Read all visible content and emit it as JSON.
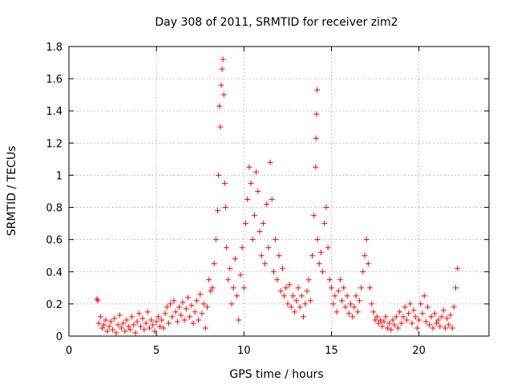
{
  "chart_data": {
    "type": "scatter",
    "title": "Day 308 of 2011, SRMTID for receiver zim2",
    "xlabel": "GPS time / hours",
    "ylabel": "SRMTID / TECUs",
    "xlim": [
      0,
      24
    ],
    "ylim": [
      0,
      1.8
    ],
    "x_ticks": [
      0,
      5,
      10,
      15,
      20
    ],
    "y_ticks": [
      0,
      0.2,
      0.4,
      0.6,
      0.8,
      1,
      1.2,
      1.4,
      1.6,
      1.8
    ],
    "x_tick_labels": [
      "0",
      "5",
      "10",
      "15",
      "20"
    ],
    "y_tick_labels": [
      "0",
      "0.2",
      "0.4",
      "0.6",
      "0.8",
      "1",
      "1.2",
      "1.4",
      "1.6",
      "1.8"
    ],
    "grid": true,
    "marker": "+",
    "color": "#ff0000",
    "series": [
      {
        "name": "zim2",
        "points": [
          [
            1.6,
            0.23
          ],
          [
            1.65,
            0.22
          ],
          [
            1.7,
            0.08
          ],
          [
            1.8,
            0.12
          ],
          [
            1.9,
            0.05
          ],
          [
            2.0,
            0.07
          ],
          [
            2.1,
            0.1
          ],
          [
            2.2,
            0.03
          ],
          [
            2.3,
            0.06
          ],
          [
            2.4,
            0.09
          ],
          [
            2.5,
            0.04
          ],
          [
            2.6,
            0.11
          ],
          [
            2.7,
            0.02
          ],
          [
            2.8,
            0.07
          ],
          [
            2.9,
            0.13
          ],
          [
            3.0,
            0.05
          ],
          [
            3.1,
            0.08
          ],
          [
            3.2,
            0.03
          ],
          [
            3.3,
            0.1
          ],
          [
            3.4,
            0.06
          ],
          [
            3.5,
            0.04
          ],
          [
            3.6,
            0.12
          ],
          [
            3.7,
            0.07
          ],
          [
            3.8,
            0.02
          ],
          [
            3.9,
            0.09
          ],
          [
            4.0,
            0.14
          ],
          [
            4.1,
            0.06
          ],
          [
            4.2,
            0.11
          ],
          [
            4.3,
            0.04
          ],
          [
            4.4,
            0.08
          ],
          [
            4.5,
            0.15
          ],
          [
            4.6,
            0.05
          ],
          [
            4.7,
            0.1
          ],
          [
            4.8,
            0.07
          ],
          [
            4.9,
            0.03
          ],
          [
            5.0,
            0.09
          ],
          [
            5.1,
            0.12
          ],
          [
            5.2,
            0.06
          ],
          [
            5.3,
            0.1
          ],
          [
            5.4,
            0.05
          ],
          [
            5.5,
            0.14
          ],
          [
            5.6,
            0.18
          ],
          [
            5.7,
            0.08
          ],
          [
            5.8,
            0.2
          ],
          [
            5.9,
            0.12
          ],
          [
            6.0,
            0.22
          ],
          [
            6.1,
            0.15
          ],
          [
            6.2,
            0.09
          ],
          [
            6.3,
            0.18
          ],
          [
            6.4,
            0.13
          ],
          [
            6.5,
            0.21
          ],
          [
            6.6,
            0.1
          ],
          [
            6.7,
            0.17
          ],
          [
            6.8,
            0.24
          ],
          [
            6.9,
            0.12
          ],
          [
            7.0,
            0.19
          ],
          [
            7.1,
            0.08
          ],
          [
            7.2,
            0.15
          ],
          [
            7.3,
            0.22
          ],
          [
            7.4,
            0.1
          ],
          [
            7.5,
            0.26
          ],
          [
            7.6,
            0.14
          ],
          [
            7.7,
            0.2
          ],
          [
            7.8,
            0.05
          ],
          [
            7.9,
            0.18
          ],
          [
            8.0,
            0.35
          ],
          [
            8.1,
            0.28
          ],
          [
            8.2,
            0.3
          ],
          [
            8.3,
            0.45
          ],
          [
            8.4,
            0.6
          ],
          [
            8.5,
            0.78
          ],
          [
            8.55,
            1.0
          ],
          [
            8.6,
            1.43
          ],
          [
            8.65,
            1.3
          ],
          [
            8.7,
            1.56
          ],
          [
            8.75,
            1.66
          ],
          [
            8.8,
            1.72
          ],
          [
            8.85,
            1.5
          ],
          [
            8.9,
            0.95
          ],
          [
            8.95,
            0.8
          ],
          [
            9.0,
            0.55
          ],
          [
            9.1,
            0.35
          ],
          [
            9.2,
            0.42
          ],
          [
            9.3,
            0.2
          ],
          [
            9.4,
            0.3
          ],
          [
            9.5,
            0.48
          ],
          [
            9.6,
            0.25
          ],
          [
            9.7,
            0.1
          ],
          [
            9.8,
            0.38
          ],
          [
            9.9,
            0.55
          ],
          [
            10.0,
            0.3
          ],
          [
            10.1,
            0.7
          ],
          [
            10.2,
            0.85
          ],
          [
            10.3,
            1.05
          ],
          [
            10.4,
            0.95
          ],
          [
            10.5,
            0.6
          ],
          [
            10.6,
            0.75
          ],
          [
            10.7,
            1.02
          ],
          [
            10.8,
            0.9
          ],
          [
            10.9,
            0.65
          ],
          [
            11.0,
            0.5
          ],
          [
            11.1,
            0.7
          ],
          [
            11.2,
            0.45
          ],
          [
            11.3,
            0.82
          ],
          [
            11.4,
            0.55
          ],
          [
            11.5,
            1.08
          ],
          [
            11.6,
            0.85
          ],
          [
            11.7,
            0.4
          ],
          [
            11.8,
            0.6
          ],
          [
            11.9,
            0.35
          ],
          [
            12.0,
            0.5
          ],
          [
            12.1,
            0.28
          ],
          [
            12.2,
            0.42
          ],
          [
            12.3,
            0.25
          ],
          [
            12.4,
            0.3
          ],
          [
            12.5,
            0.2
          ],
          [
            12.6,
            0.32
          ],
          [
            12.7,
            0.18
          ],
          [
            12.8,
            0.25
          ],
          [
            12.9,
            0.15
          ],
          [
            13.0,
            0.22
          ],
          [
            13.1,
            0.3
          ],
          [
            13.2,
            0.18
          ],
          [
            13.3,
            0.25
          ],
          [
            13.4,
            0.12
          ],
          [
            13.5,
            0.2
          ],
          [
            13.6,
            0.28
          ],
          [
            13.7,
            0.35
          ],
          [
            13.8,
            0.22
          ],
          [
            13.9,
            0.5
          ],
          [
            14.0,
            0.75
          ],
          [
            14.1,
            1.05
          ],
          [
            14.12,
            1.23
          ],
          [
            14.15,
            1.38
          ],
          [
            14.18,
            1.53
          ],
          [
            14.2,
            0.6
          ],
          [
            14.3,
            0.45
          ],
          [
            14.4,
            0.52
          ],
          [
            14.5,
            0.4
          ],
          [
            14.6,
            0.7
          ],
          [
            14.7,
            0.8
          ],
          [
            14.8,
            0.55
          ],
          [
            14.9,
            0.35
          ],
          [
            15.0,
            0.3
          ],
          [
            15.1,
            0.2
          ],
          [
            15.2,
            0.25
          ],
          [
            15.3,
            0.15
          ],
          [
            15.4,
            0.28
          ],
          [
            15.5,
            0.35
          ],
          [
            15.6,
            0.22
          ],
          [
            15.7,
            0.3
          ],
          [
            15.8,
            0.18
          ],
          [
            15.9,
            0.25
          ],
          [
            16.0,
            0.14
          ],
          [
            16.1,
            0.2
          ],
          [
            16.2,
            0.12
          ],
          [
            16.3,
            0.18
          ],
          [
            16.4,
            0.25
          ],
          [
            16.5,
            0.15
          ],
          [
            16.6,
            0.22
          ],
          [
            16.7,
            0.3
          ],
          [
            16.8,
            0.4
          ],
          [
            16.9,
            0.5
          ],
          [
            17.0,
            0.6
          ],
          [
            17.1,
            0.45
          ],
          [
            17.2,
            0.3
          ],
          [
            17.3,
            0.2
          ],
          [
            17.4,
            0.15
          ],
          [
            17.5,
            0.1
          ],
          [
            17.6,
            0.12
          ],
          [
            17.7,
            0.08
          ],
          [
            17.8,
            0.1
          ],
          [
            17.9,
            0.06
          ],
          [
            18.0,
            0.09
          ],
          [
            18.1,
            0.12
          ],
          [
            18.2,
            0.05
          ],
          [
            18.3,
            0.08
          ],
          [
            18.4,
            0.04
          ],
          [
            18.5,
            0.1
          ],
          [
            18.6,
            0.07
          ],
          [
            18.7,
            0.12
          ],
          [
            18.8,
            0.05
          ],
          [
            18.9,
            0.15
          ],
          [
            19.0,
            0.08
          ],
          [
            19.1,
            0.12
          ],
          [
            19.2,
            0.18
          ],
          [
            19.3,
            0.1
          ],
          [
            19.4,
            0.14
          ],
          [
            19.5,
            0.2
          ],
          [
            19.6,
            0.08
          ],
          [
            19.7,
            0.16
          ],
          [
            19.8,
            0.12
          ],
          [
            19.9,
            0.05
          ],
          [
            20.0,
            0.1
          ],
          [
            20.1,
            0.2
          ],
          [
            20.2,
            0.14
          ],
          [
            20.3,
            0.25
          ],
          [
            20.4,
            0.09
          ],
          [
            20.5,
            0.18
          ],
          [
            20.6,
            0.07
          ],
          [
            20.7,
            0.12
          ],
          [
            20.8,
            0.05
          ],
          [
            20.9,
            0.14
          ],
          [
            21.0,
            0.08
          ],
          [
            21.1,
            0.1
          ],
          [
            21.2,
            0.06
          ],
          [
            21.3,
            0.12
          ],
          [
            21.4,
            0.16
          ],
          [
            21.5,
            0.05
          ],
          [
            21.6,
            0.11
          ],
          [
            21.7,
            0.07
          ],
          [
            21.8,
            0.13
          ],
          [
            21.9,
            0.05
          ],
          [
            22.0,
            0.18
          ],
          [
            22.1,
            0.3
          ],
          [
            22.2,
            0.42
          ]
        ]
      }
    ]
  }
}
